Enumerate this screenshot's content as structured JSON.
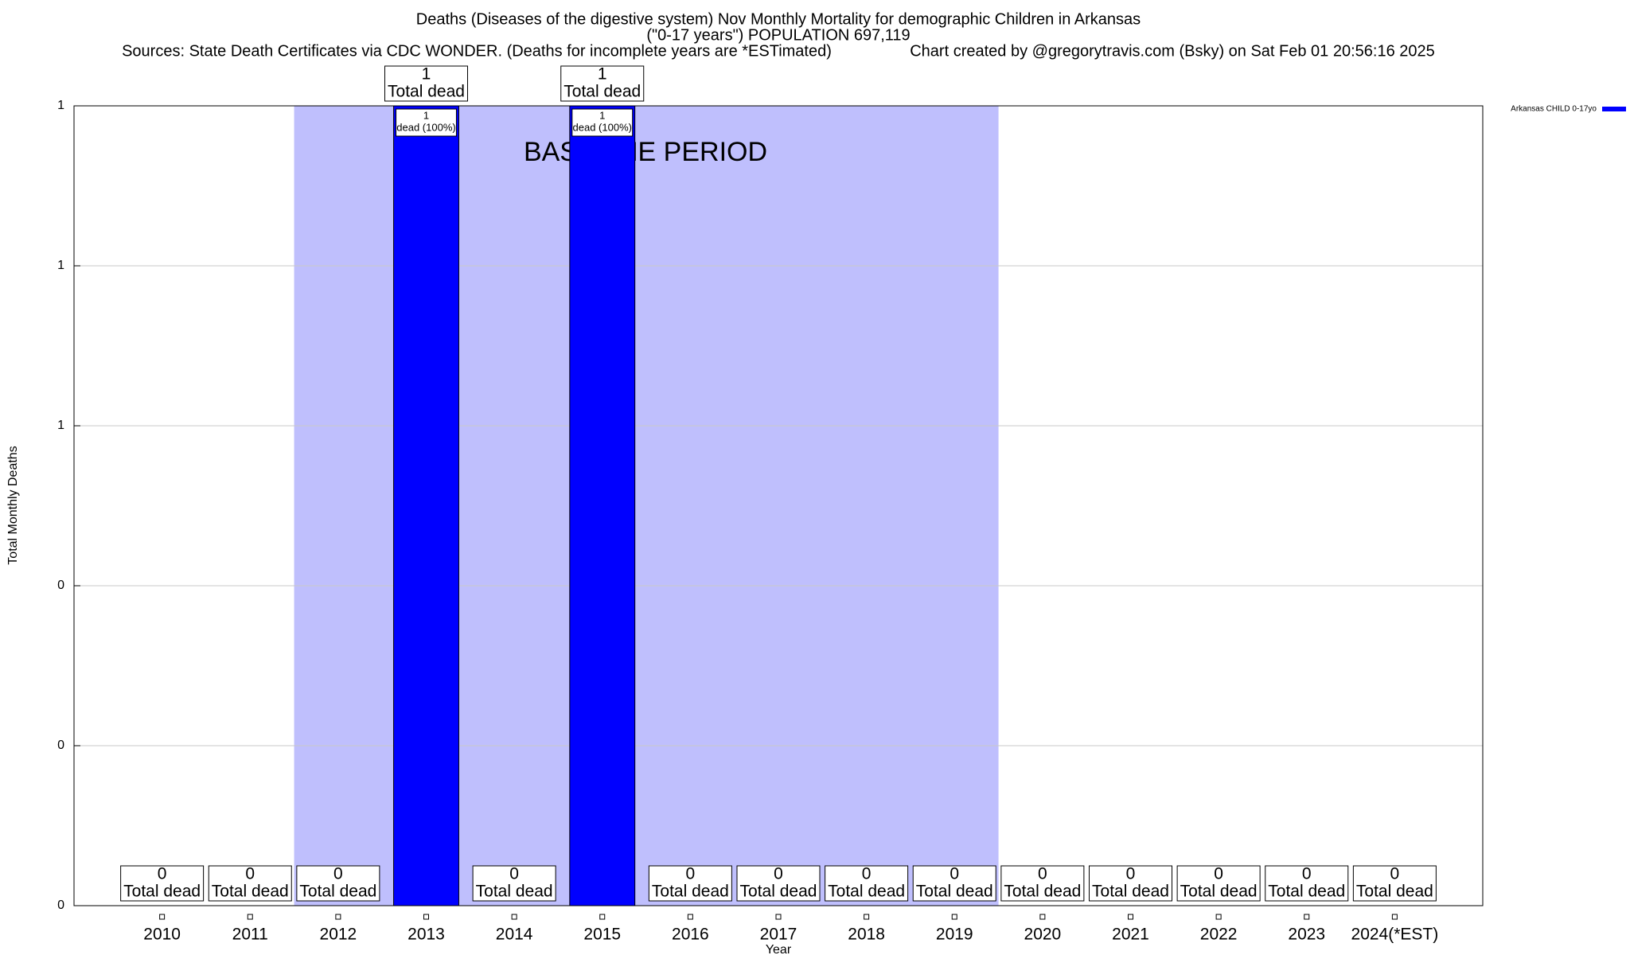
{
  "chart_data": {
    "type": "bar",
    "title_lines": [
      "Deaths (Diseases of the digestive system) Nov Monthly Mortality for demographic Children in Arkansas",
      "(\"0-17 years\") POPULATION 697,119"
    ],
    "sources": "Sources: State Death Certificates via CDC WONDER. (Deaths for incomplete years are *ESTimated)",
    "credit": "Chart created by @gregorytravis.com (Bsky) on Sat Feb 01 20:56:16 2025",
    "x_label": "Year",
    "y_label": "Total Monthly Deaths",
    "categories": [
      "2010",
      "2011",
      "2012",
      "2013",
      "2014",
      "2015",
      "2016",
      "2017",
      "2018",
      "2019",
      "2020",
      "2021",
      "2022",
      "2023",
      "2024(*EST)"
    ],
    "series": [
      {
        "name": "Arkansas CHILD 0-17yo",
        "color": "#0000ff",
        "values": [
          0,
          0,
          0,
          1,
          0,
          1,
          0,
          0,
          0,
          0,
          0,
          0,
          0,
          0,
          0
        ]
      }
    ],
    "total_label": "Total dead",
    "bar_label": "dead (100%)",
    "ylim": [
      0,
      1
    ],
    "yticks": [
      0,
      {
        "value": 0.2,
        "label": "0"
      },
      {
        "value": 0.4,
        "label": "0"
      },
      {
        "value": 0.6,
        "label": "1"
      },
      {
        "value": 0.8,
        "label": "1"
      },
      1
    ],
    "grid": true,
    "legend": "top-right",
    "baseline_period": {
      "label": "BASELINE PERIOD",
      "start": "2012",
      "end": "2019",
      "color": "#bfbffd"
    }
  }
}
